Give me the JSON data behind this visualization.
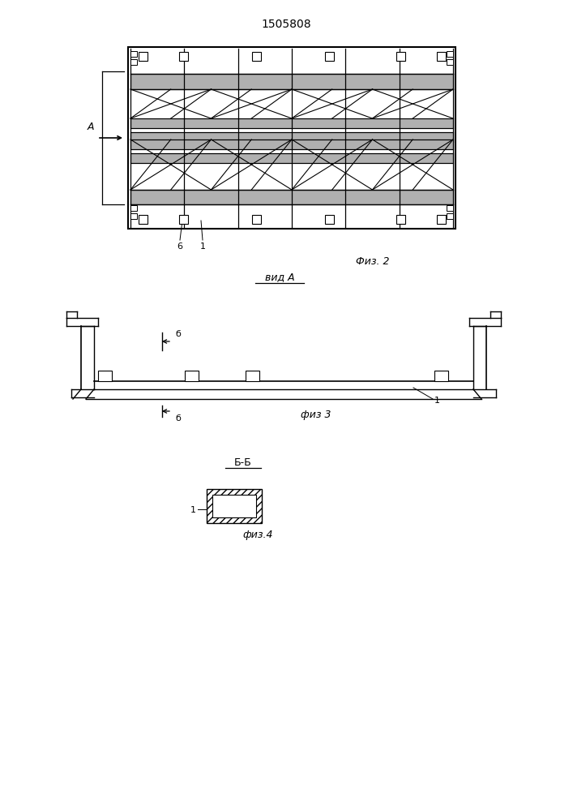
{
  "title": "1505808",
  "fig2_label": "Физ. 2",
  "fig3_label": "физ 3",
  "fig4_label": "физ.4",
  "vid_a_label": "вид A",
  "bb_label": "Б-Б",
  "line_color": "#000000",
  "bg_color": "#ffffff",
  "label_1": "1",
  "label_6": "6",
  "label_b_upper": "б",
  "label_b_lower": "б"
}
